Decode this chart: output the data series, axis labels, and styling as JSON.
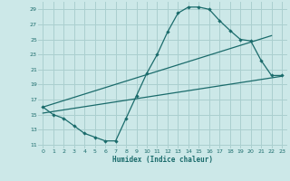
{
  "xlabel": "Humidex (Indice chaleur)",
  "bg_color": "#cce8e8",
  "grid_color": "#aacfcf",
  "line_color": "#1a6b6b",
  "xlim": [
    -0.5,
    23.5
  ],
  "ylim": [
    10.5,
    30.0
  ],
  "xticks": [
    0,
    1,
    2,
    3,
    4,
    5,
    6,
    7,
    8,
    9,
    10,
    11,
    12,
    13,
    14,
    15,
    16,
    17,
    18,
    19,
    20,
    21,
    22,
    23
  ],
  "yticks": [
    11,
    13,
    15,
    17,
    19,
    21,
    23,
    25,
    27,
    29
  ],
  "line1_x": [
    0,
    1,
    2,
    3,
    4,
    5,
    6,
    7,
    8,
    9,
    10,
    11,
    12,
    13,
    14,
    15,
    16,
    17,
    18,
    19,
    20,
    21,
    22,
    23
  ],
  "line1_y": [
    16,
    15,
    14.5,
    13.5,
    12.5,
    12,
    11.5,
    11.5,
    14.5,
    17.5,
    20.5,
    23,
    26,
    28.5,
    29.3,
    29.3,
    29.0,
    27.5,
    26.2,
    25.0,
    24.8,
    22.2,
    20.2,
    20.2
  ],
  "line2_x": [
    0,
    22
  ],
  "line2_y": [
    16.0,
    25.5
  ],
  "line3_x": [
    0,
    23
  ],
  "line3_y": [
    15.2,
    20.1
  ]
}
